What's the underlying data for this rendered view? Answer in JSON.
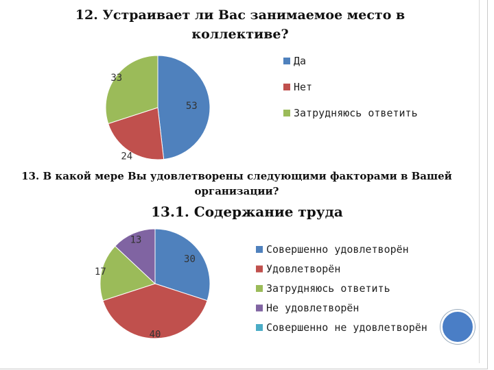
{
  "q12": {
    "title": "12. Устраивает ли Вас занимаемое место в коллективе?"
  },
  "q13": {
    "title": "13. В какой мере Вы удовлетворены следующими факторами в Вашей организации?",
    "subtitle": "13.1. Содержание труда"
  },
  "chart_data": [
    {
      "type": "pie",
      "title": "12. Устраивает ли Вас занимаемое место в коллективе?",
      "categories": [
        "Да",
        "Нет",
        "Затрудняюсь ответить"
      ],
      "values": [
        53,
        24,
        33
      ],
      "colors": [
        "#4f81bd",
        "#c0504d",
        "#9bbb59"
      ],
      "legend": "right"
    },
    {
      "type": "pie",
      "title": "13.1. Содержание труда",
      "categories": [
        "Совершенно удовлетворён",
        "Удовлетворён",
        "Затрудняюсь ответить",
        "Не удовлетворён",
        "Совершенно не удовлетворён"
      ],
      "values": [
        30,
        40,
        17,
        13,
        0
      ],
      "colors": [
        "#4f81bd",
        "#c0504d",
        "#9bbb59",
        "#8064a2",
        "#4bacc6"
      ],
      "legend": "right"
    }
  ]
}
